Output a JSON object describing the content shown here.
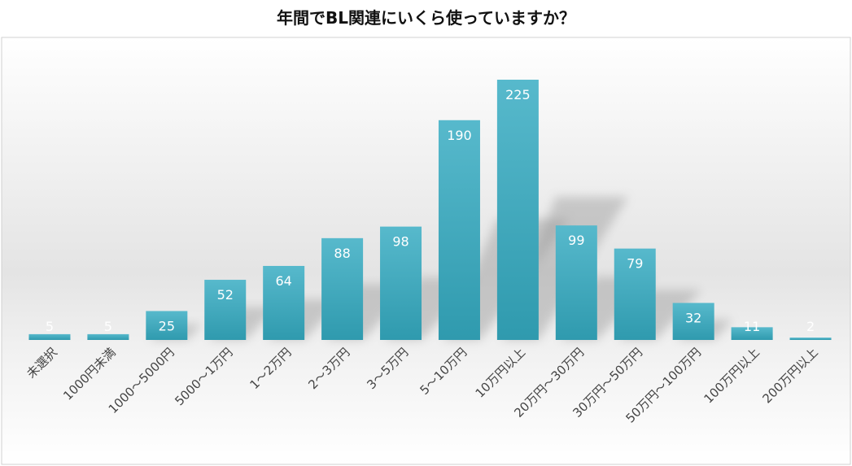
{
  "chart_data": {
    "type": "bar",
    "title": "年間でBL関連にいくら使っていますか？",
    "categories": [
      "未選択",
      "1000円未満",
      "1000～5000円",
      "5000～1万円",
      "1～2万円",
      "2～3万円",
      "3～5万円",
      "5～10万円",
      "10万円以上",
      "20万円～30万円",
      "30万円～50万円",
      "50万円～100万円",
      "100万円以上",
      "200万円以上"
    ],
    "values": [
      5,
      5,
      25,
      52,
      64,
      88,
      98,
      190,
      225,
      99,
      79,
      32,
      11,
      2
    ],
    "data_labels": [
      "5",
      "5",
      "25",
      "52",
      "64",
      "88",
      "98",
      "190",
      "225",
      "99",
      "79",
      "32",
      "11",
      "2"
    ],
    "ylim": [
      0,
      250
    ],
    "grid": false,
    "legend": "none",
    "colors": {
      "bar_top": "#57b9cc",
      "bar_bottom": "#2f9aae",
      "label": "#ffffff",
      "axis_text": "#444444"
    }
  }
}
